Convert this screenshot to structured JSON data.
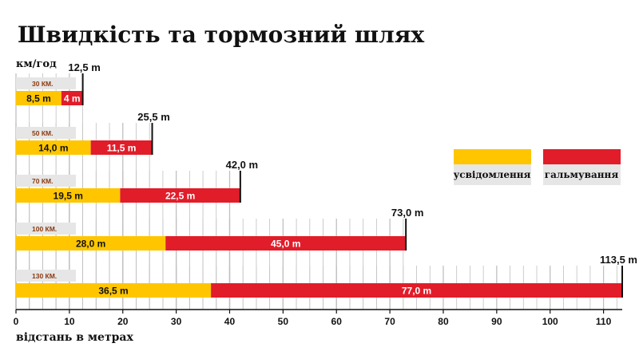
{
  "chart_data": {
    "type": "bar",
    "title": "Швидкість та тормозний шлях",
    "unit_label": "км/год",
    "xlabel": "відстань в метрах",
    "xlim": [
      0,
      113.5
    ],
    "xticks": [
      0,
      10,
      20,
      30,
      40,
      50,
      60,
      70,
      80,
      90,
      100,
      110
    ],
    "grid": true,
    "legend_position": "right",
    "colors": {
      "reaction": "#ffc600",
      "braking": "#e11d2a",
      "speed_tag_bg": "#e6e6e6",
      "grid": "#c0c0c0"
    },
    "categories": [
      "30 КМ.",
      "50 КМ.",
      "70 КМ.",
      "100 КМ.",
      "130 КМ."
    ],
    "series": [
      {
        "name": "усвідомлення",
        "values": [
          8.5,
          14.0,
          19.5,
          28.0,
          36.5
        ],
        "labels": [
          "8,5 m",
          "14,0 m",
          "19,5 m",
          "28,0 m",
          "36,5 m"
        ]
      },
      {
        "name": "гальмування",
        "values": [
          4.0,
          11.5,
          22.5,
          45.0,
          77.0
        ],
        "labels": [
          "4 m",
          "11,5 m",
          "22,5 m",
          "45,0 m",
          "77,0 m"
        ]
      }
    ],
    "totals": [
      12.5,
      25.5,
      42.0,
      73.0,
      113.5
    ],
    "total_labels": [
      "12,5 m",
      "25,5 m",
      "42,0 m",
      "73,0 m",
      "113,5 m"
    ]
  }
}
